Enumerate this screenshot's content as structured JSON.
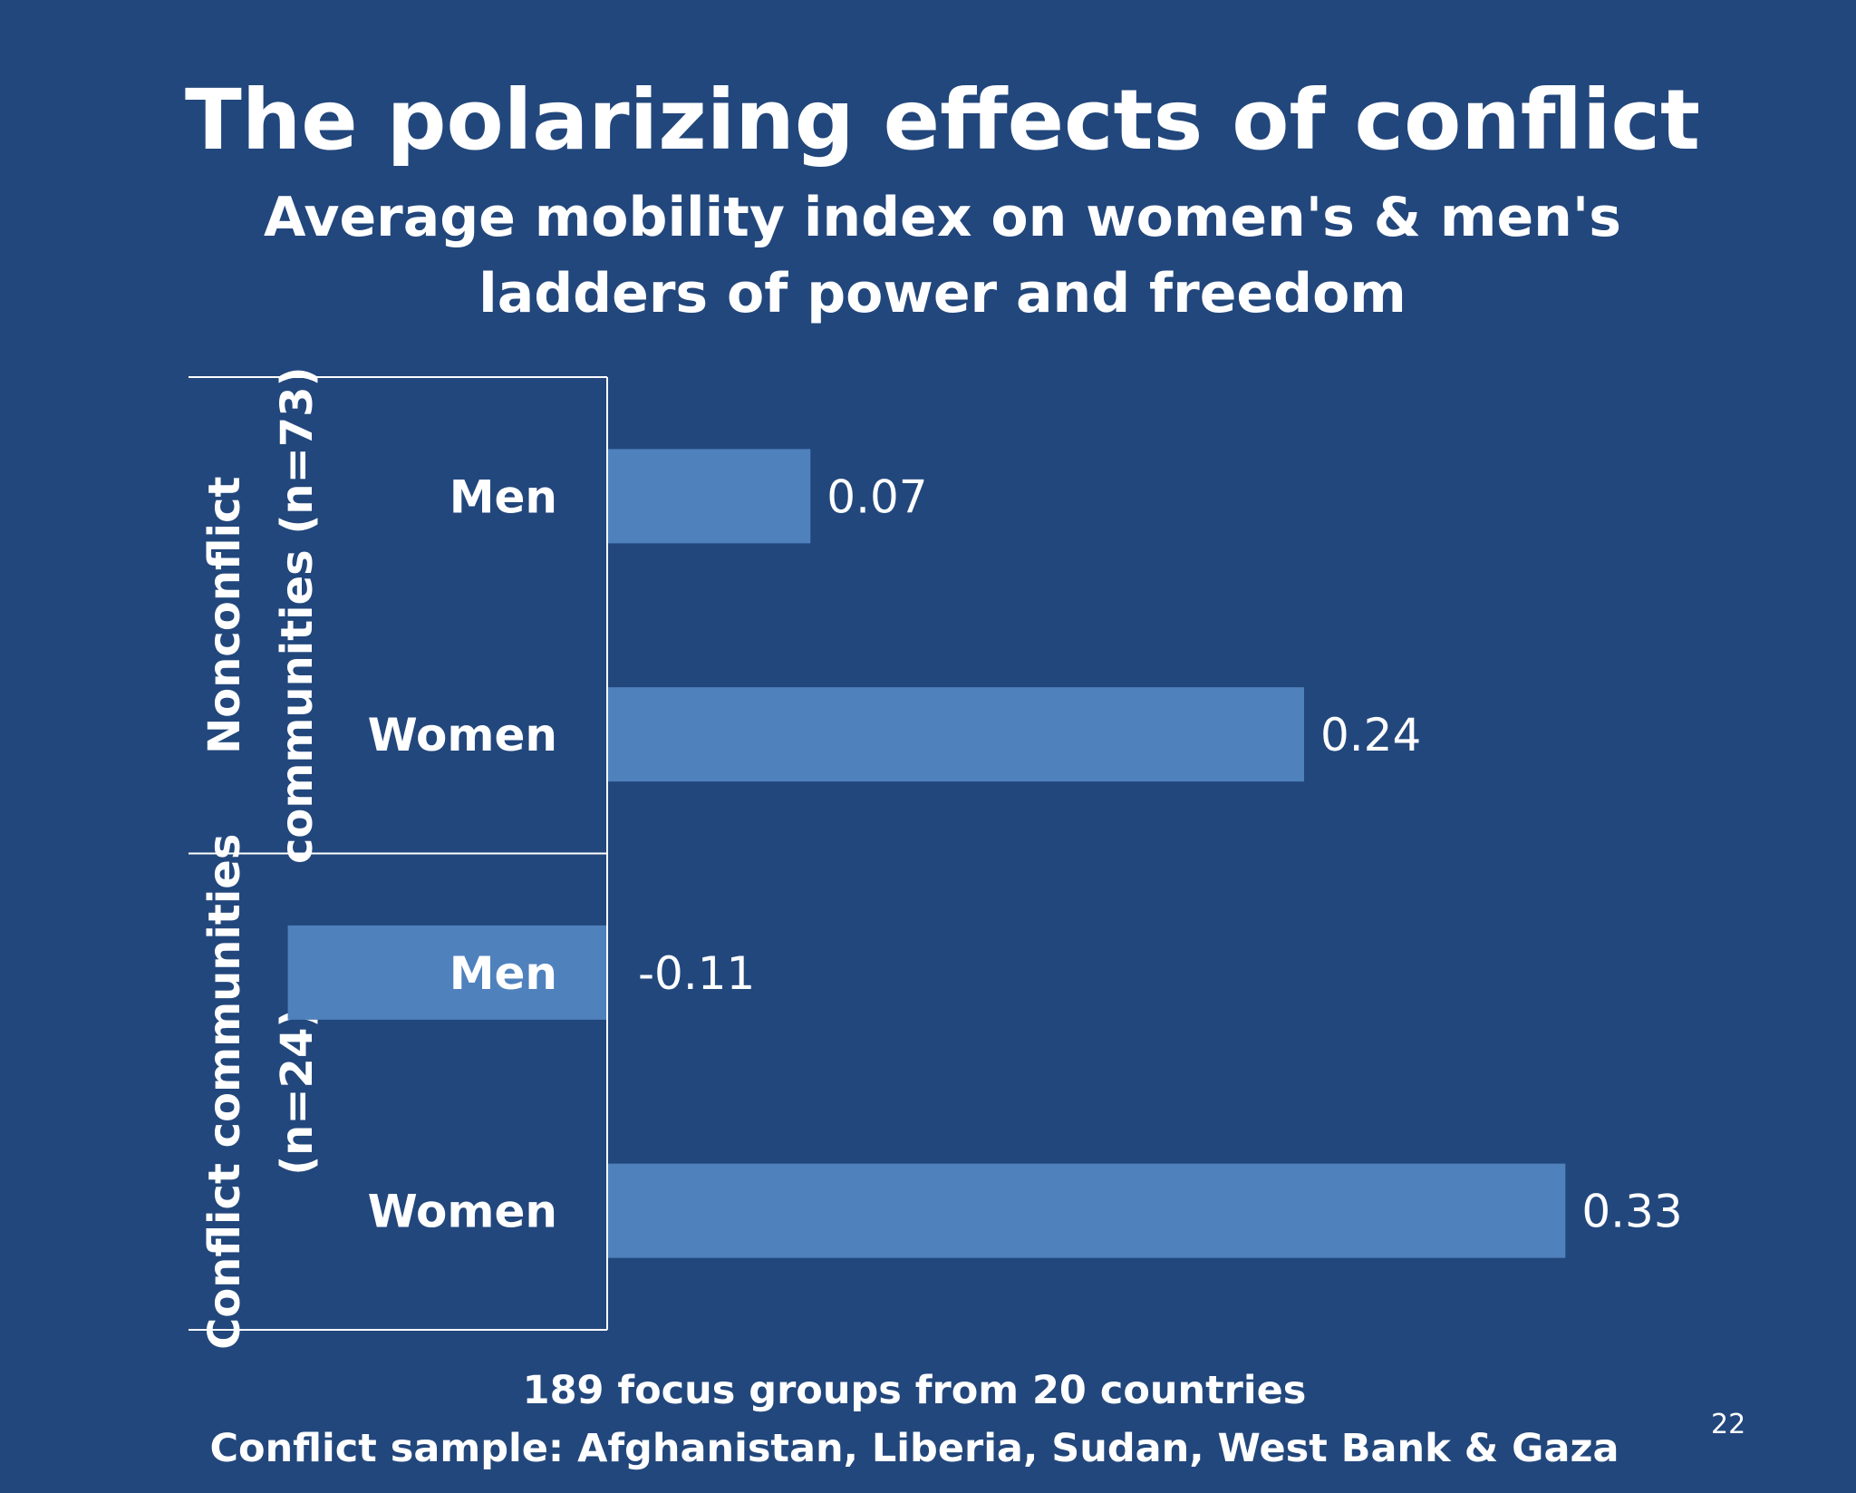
{
  "slide": {
    "page_number": "22",
    "footer_lines": [
      "189 focus groups from 20 countries",
      "Conflict sample: Afghanistan, Liberia, Sudan, West Bank & Gaza"
    ]
  },
  "chart_data": {
    "type": "bar",
    "orientation": "horizontal",
    "title": "The polarizing effects of conflict",
    "subtitle": "Average mobility index on women's & men's ladders of power and freedom",
    "groups": [
      {
        "label_lines": [
          "Nonconflict",
          "communities (n=73)"
        ],
        "bars": [
          {
            "label": "Men",
            "value": 0.07,
            "value_label": "0.07"
          },
          {
            "label": "Women",
            "value": 0.24,
            "value_label": "0.24"
          }
        ]
      },
      {
        "label_lines": [
          "Conflict communities",
          "(n=24)"
        ],
        "bars": [
          {
            "label": "Men",
            "value": -0.11,
            "value_label": "-0.11"
          },
          {
            "label": "Women",
            "value": 0.33,
            "value_label": "0.33"
          }
        ]
      }
    ],
    "xlim": [
      -0.11,
      0.33
    ],
    "grid": false,
    "legend": "none",
    "colors": {
      "background": "#22477c",
      "bar": "#4f81bd",
      "text": "#ffffff",
      "axis": "#ffffff"
    }
  }
}
